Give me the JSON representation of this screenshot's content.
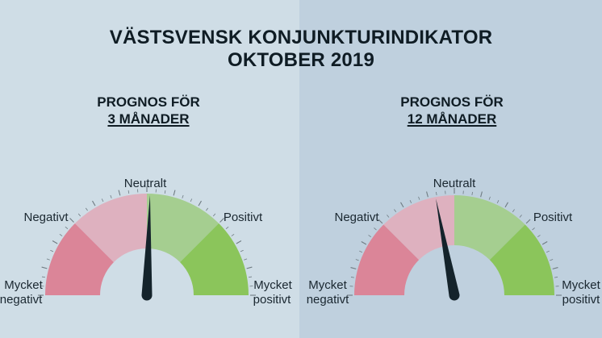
{
  "header": {
    "title_line1": "VÄSTSVENSK KONJUNKTURINDIKATOR",
    "title_line2": "OKTOBER 2019"
  },
  "gauges": [
    {
      "heading": "PROGNOS FÖR",
      "period": "3 MÅNADER",
      "needle_position": 0.51,
      "labels": {
        "neutral": "Neutralt",
        "negative": "Negativt",
        "positive": "Positivt",
        "very_negative_line1": "Mycket",
        "very_negative_line2": "negativt",
        "very_positive_line1": "Mycket",
        "very_positive_line2": "positivt"
      }
    },
    {
      "heading": "PROGNOS FÖR",
      "period": "12 MÅNADER",
      "needle_position": 0.44,
      "labels": {
        "neutral": "Neutralt",
        "negative": "Negativt",
        "positive": "Positivt",
        "very_negative_line1": "Mycket",
        "very_negative_line2": "negativt",
        "very_positive_line1": "Mycket",
        "very_positive_line2": "positivt"
      }
    }
  ],
  "colors": {
    "very_negative": "#db8598",
    "negative": "#deb1bf",
    "positive": "#a5ce90",
    "very_positive": "#8bc55b",
    "needle": "#14232b",
    "tick": "#6f7b82"
  }
}
